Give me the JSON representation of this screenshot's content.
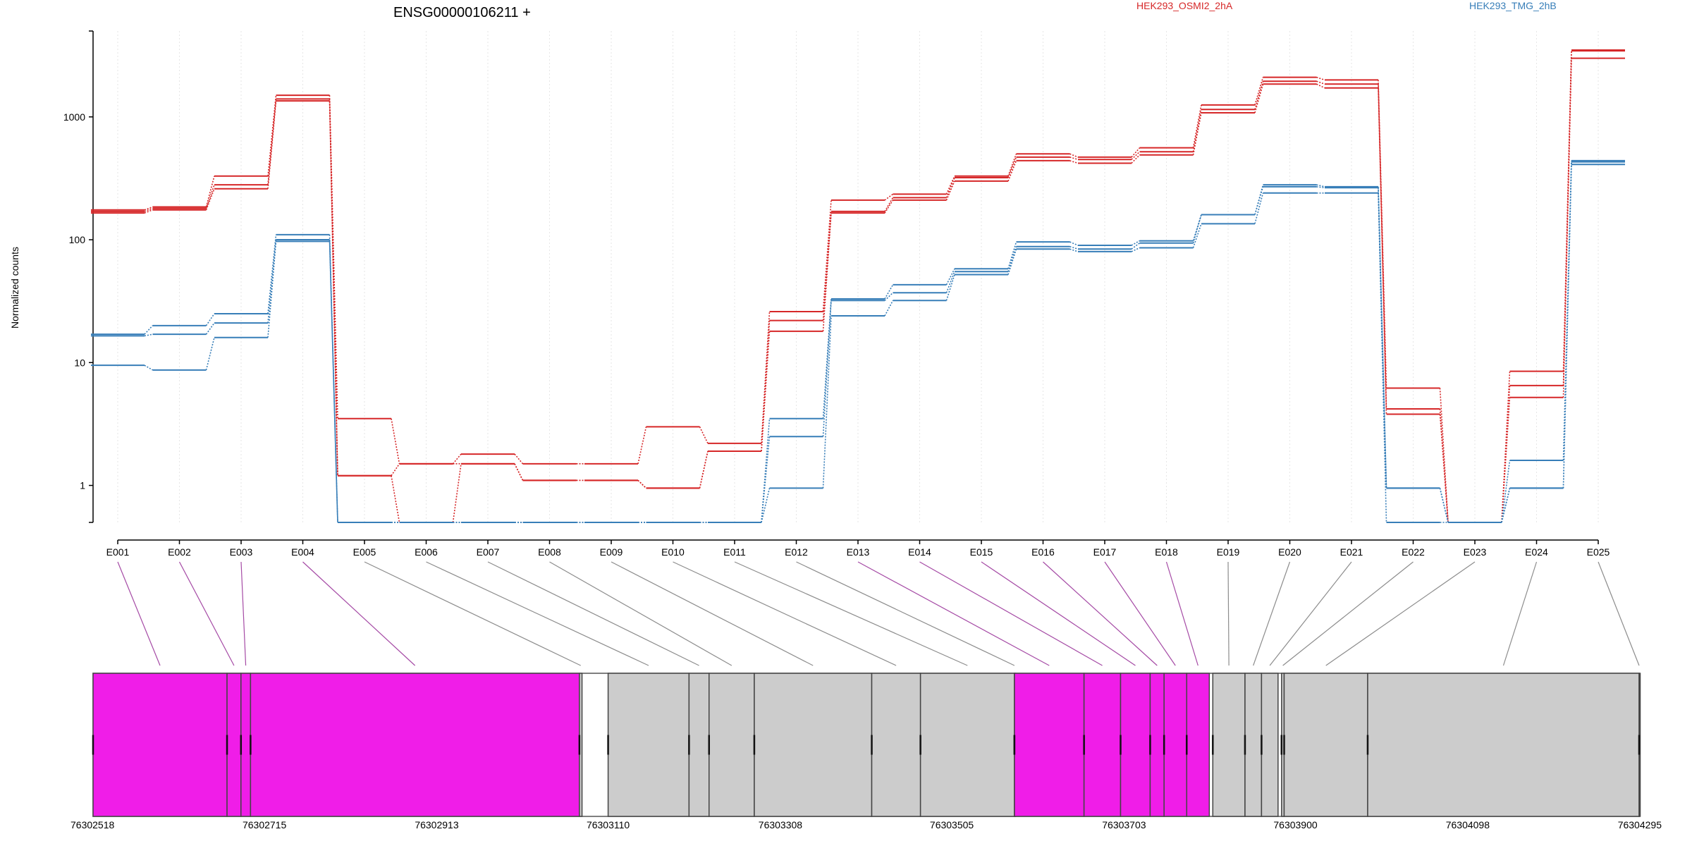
{
  "chart_data": {
    "type": "line",
    "title": "ENSG00000106211 +",
    "ylabel": "Normalized counts",
    "y_scale": "log",
    "y_ticks": [
      1,
      10,
      100,
      1000
    ],
    "y_tick_labels": [
      "1",
      "10",
      "100",
      "1000"
    ],
    "ylim": [
      0.5,
      5000
    ],
    "grid": "vertical-dotted",
    "categories": [
      "E001",
      "E002",
      "E003",
      "E004",
      "E005",
      "E006",
      "E007",
      "E008",
      "E009",
      "E010",
      "E011",
      "E012",
      "E013",
      "E014",
      "E015",
      "E016",
      "E017",
      "E018",
      "E019",
      "E020",
      "E021",
      "E022",
      "E023",
      "E024",
      "E025"
    ],
    "series": [
      {
        "name": "HEK293_OSMI2_2hA",
        "color": "#d62728",
        "values": [
          175,
          185,
          330,
          1500,
          3.5,
          1.5,
          1.8,
          1.5,
          1.5,
          3.0,
          2.2,
          26,
          210,
          235,
          330,
          500,
          470,
          560,
          1250,
          2100,
          2000,
          6.2,
          0.5,
          8.5,
          3500
        ]
      },
      {
        "color": "#d62728",
        "values": [
          170,
          180,
          280,
          1400,
          1.2,
          1.5,
          1.5,
          1.1,
          1.1,
          0.95,
          1.9,
          22,
          170,
          220,
          320,
          470,
          450,
          520,
          1150,
          1950,
          1850,
          4.2,
          0.5,
          6.5,
          3450
        ]
      },
      {
        "color": "#d62728",
        "values": [
          165,
          175,
          260,
          1350,
          1.2,
          0.5,
          1.5,
          1.1,
          1.1,
          0.95,
          1.9,
          18,
          165,
          210,
          300,
          440,
          420,
          490,
          1080,
          1850,
          1720,
          3.8,
          0.5,
          5.2,
          3000
        ]
      },
      {
        "name": "HEK293_TMG_2hB",
        "color": "#377eb8",
        "values": [
          17,
          20,
          25,
          110,
          0.5,
          0.5,
          0.5,
          0.5,
          0.5,
          0.5,
          0.5,
          3.5,
          33,
          43,
          58,
          96,
          90,
          98,
          160,
          280,
          270,
          0.95,
          0.5,
          1.6,
          440
        ]
      },
      {
        "color": "#377eb8",
        "values": [
          16.5,
          17,
          21,
          100,
          0.5,
          0.5,
          0.5,
          0.5,
          0.5,
          0.5,
          0.5,
          2.5,
          32,
          37,
          55,
          88,
          84,
          94,
          160,
          270,
          265,
          0.95,
          0.5,
          0.95,
          430
        ]
      },
      {
        "color": "#377eb8",
        "values": [
          9.5,
          8.7,
          16,
          97,
          0.5,
          0.5,
          0.5,
          0.5,
          0.5,
          0.5,
          0.5,
          0.95,
          24,
          32,
          52,
          84,
          80,
          86,
          135,
          240,
          240,
          0.5,
          0.5,
          0.95,
          410
        ]
      }
    ],
    "legend": [
      "HEK293_OSMI2_2hA",
      "HEK293_TMG_2hB"
    ],
    "genomic_track": {
      "range": [
        76302518,
        76304295
      ],
      "coordinate_ticks": [
        76302518,
        76302715,
        76302913,
        76303110,
        76303308,
        76303505,
        76303703,
        76303900,
        76304098,
        76304295
      ],
      "exons": [
        {
          "id": "E001",
          "start": 76302518,
          "end": 76302672,
          "significant": true
        },
        {
          "id": "E002",
          "start": 76302672,
          "end": 76302688,
          "significant": true
        },
        {
          "id": "E003",
          "start": 76302688,
          "end": 76302699,
          "significant": true
        },
        {
          "id": "E004",
          "start": 76302699,
          "end": 76303077,
          "significant": true
        },
        {
          "id": "E005",
          "start": 76303077,
          "end": 76303080,
          "significant": false
        },
        {
          "id": "E006",
          "start": 76303110,
          "end": 76303203,
          "significant": false
        },
        {
          "id": "E007",
          "start": 76303203,
          "end": 76303226,
          "significant": false
        },
        {
          "id": "E008",
          "start": 76303226,
          "end": 76303278,
          "significant": false
        },
        {
          "id": "E009",
          "start": 76303278,
          "end": 76303413,
          "significant": false
        },
        {
          "id": "E010",
          "start": 76303413,
          "end": 76303469,
          "significant": false
        },
        {
          "id": "E011",
          "start": 76303469,
          "end": 76303577,
          "significant": false
        },
        {
          "id": "E012",
          "start": 76303577,
          "end": 76303577,
          "significant": false
        },
        {
          "id": "E013",
          "start": 76303577,
          "end": 76303657,
          "significant": true
        },
        {
          "id": "E014",
          "start": 76303657,
          "end": 76303699,
          "significant": true
        },
        {
          "id": "E015",
          "start": 76303699,
          "end": 76303733,
          "significant": true
        },
        {
          "id": "E016",
          "start": 76303733,
          "end": 76303749,
          "significant": true
        },
        {
          "id": "E017",
          "start": 76303749,
          "end": 76303775,
          "significant": true
        },
        {
          "id": "E018",
          "start": 76303775,
          "end": 76303801,
          "significant": true
        },
        {
          "id": "E019",
          "start": 76303805,
          "end": 76303842,
          "significant": false
        },
        {
          "id": "E020",
          "start": 76303842,
          "end": 76303861,
          "significant": false
        },
        {
          "id": "E021",
          "start": 76303861,
          "end": 76303880,
          "significant": false
        },
        {
          "id": "E022",
          "start": 76303884,
          "end": 76303887,
          "significant": false
        },
        {
          "id": "E023",
          "start": 76303887,
          "end": 76303983,
          "significant": false
        },
        {
          "id": "E024",
          "start": 76303983,
          "end": 76304295,
          "significant": false
        },
        {
          "id": "E025",
          "start": 76304295,
          "end": 76304295,
          "significant": false
        }
      ]
    }
  },
  "colors": {
    "series_a": "#d62728",
    "series_b": "#377eb8",
    "significant_exon": "#f01de8",
    "exon": "#cccccc",
    "significant_link": "#a54aa5",
    "link": "#8c8c8c",
    "grid": "#e6e6e6"
  }
}
